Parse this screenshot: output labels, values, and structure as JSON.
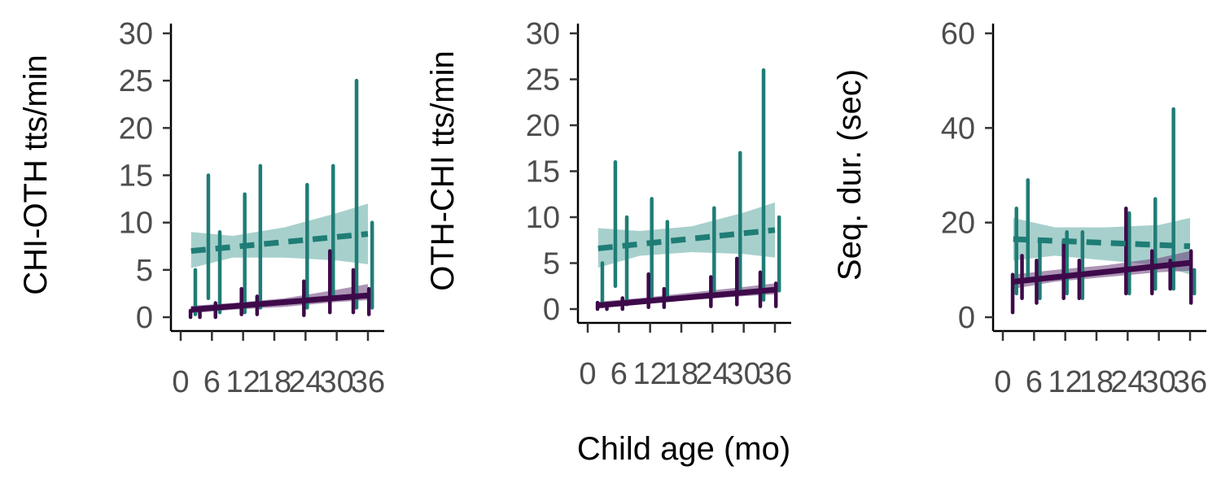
{
  "colors": {
    "band_low": "#3e0a4a",
    "band_high": "#1f7d76",
    "ribbon_low": "#6a3d78",
    "ribbon_high": "#5fa9a2"
  },
  "xlabel_shared": "Child age (mo)",
  "chart_data": [
    {
      "type": "line",
      "ylabel": "CHI-OTH tts/min",
      "xlim": [
        0,
        38
      ],
      "ylim": [
        0,
        30
      ],
      "xticks": [
        0,
        6,
        12,
        18,
        24,
        30,
        36
      ],
      "yticks": [
        0,
        5,
        10,
        15,
        20,
        25,
        30
      ],
      "series": [
        {
          "style": "dashed",
          "color": "#1f7d76",
          "trend": {
            "x": [
              2,
              36
            ],
            "y": [
              7,
              8.8
            ]
          },
          "ribbon": {
            "x": [
              2,
              10,
              20,
              30,
              36
            ],
            "lower": [
              5.2,
              6.3,
              6.3,
              6.0,
              5.6
            ],
            "upper": [
              9.0,
              8.6,
              9.5,
              11.0,
              12.0
            ]
          },
          "ranges": [
            {
              "x": 2.5,
              "lo": 0.3,
              "hi": 5
            },
            {
              "x": 5,
              "lo": 2,
              "hi": 15
            },
            {
              "x": 7.2,
              "lo": 0.5,
              "hi": 9
            },
            {
              "x": 12,
              "lo": 0.5,
              "hi": 13
            },
            {
              "x": 15,
              "lo": 1,
              "hi": 16
            },
            {
              "x": 24,
              "lo": 1,
              "hi": 14
            },
            {
              "x": 29,
              "lo": 2,
              "hi": 16
            },
            {
              "x": 33.5,
              "lo": 1,
              "hi": 25
            },
            {
              "x": 36.5,
              "lo": 1,
              "hi": 10
            }
          ]
        },
        {
          "style": "solid",
          "color": "#3e0a4a",
          "trend": {
            "x": [
              2,
              36
            ],
            "y": [
              0.8,
              2.3
            ]
          },
          "ribbon": {
            "x": [
              2,
              10,
              20,
              30,
              36
            ],
            "lower": [
              0.4,
              0.8,
              1.1,
              1.6,
              1.8
            ],
            "upper": [
              1.2,
              1.5,
              2.0,
              2.9,
              3.5
            ]
          },
          "ranges": [
            {
              "x": 2.2,
              "lo": 0,
              "hi": 0.7
            },
            {
              "x": 4,
              "lo": 0,
              "hi": 0.5
            },
            {
              "x": 7,
              "lo": 0,
              "hi": 1.5
            },
            {
              "x": 12,
              "lo": 0.3,
              "hi": 3
            },
            {
              "x": 15,
              "lo": 0.3,
              "hi": 2.2
            },
            {
              "x": 24,
              "lo": 0.2,
              "hi": 3.8
            },
            {
              "x": 29,
              "lo": 0.5,
              "hi": 7
            },
            {
              "x": 33.5,
              "lo": 0.5,
              "hi": 5
            },
            {
              "x": 36.5,
              "lo": 0.3,
              "hi": 3
            }
          ]
        }
      ]
    },
    {
      "type": "line",
      "ylabel": "OTH-CHI tts/min",
      "xlim": [
        0,
        38
      ],
      "ylim": [
        0,
        30
      ],
      "xticks": [
        0,
        6,
        12,
        18,
        24,
        30,
        36
      ],
      "yticks": [
        0,
        5,
        10,
        15,
        20,
        25,
        30
      ],
      "series": [
        {
          "style": "dashed",
          "color": "#1f7d76",
          "trend": {
            "x": [
              2,
              36
            ],
            "y": [
              6.6,
              8.6
            ]
          },
          "ribbon": {
            "x": [
              2,
              10,
              20,
              30,
              36
            ],
            "lower": [
              4.5,
              5.8,
              6.2,
              6.0,
              5.6
            ],
            "upper": [
              8.8,
              8.5,
              9.0,
              10.5,
              11.6
            ]
          },
          "ranges": [
            {
              "x": 2.5,
              "lo": 0.3,
              "hi": 5
            },
            {
              "x": 5,
              "lo": 2.5,
              "hi": 16
            },
            {
              "x": 7.2,
              "lo": 0.5,
              "hi": 10
            },
            {
              "x": 12,
              "lo": 1,
              "hi": 12
            },
            {
              "x": 15,
              "lo": 1.5,
              "hi": 9.5
            },
            {
              "x": 24,
              "lo": 2,
              "hi": 11
            },
            {
              "x": 29,
              "lo": 2,
              "hi": 17
            },
            {
              "x": 33.5,
              "lo": 1,
              "hi": 26
            },
            {
              "x": 36.5,
              "lo": 2,
              "hi": 10
            }
          ]
        },
        {
          "style": "solid",
          "color": "#3e0a4a",
          "trend": {
            "x": [
              2,
              36
            ],
            "y": [
              0.4,
              2.1
            ]
          },
          "ribbon": {
            "x": [
              2,
              10,
              20,
              30,
              36
            ],
            "lower": [
              0.1,
              0.6,
              1.0,
              1.4,
              1.6
            ],
            "upper": [
              0.8,
              1.2,
              1.8,
              2.4,
              2.8
            ]
          },
          "ranges": [
            {
              "x": 2.2,
              "lo": 0,
              "hi": 0.7
            },
            {
              "x": 4,
              "lo": 0,
              "hi": 0.6
            },
            {
              "x": 7,
              "lo": 0,
              "hi": 1.2
            },
            {
              "x": 12,
              "lo": 0.2,
              "hi": 3.8
            },
            {
              "x": 15,
              "lo": 0.2,
              "hi": 2.2
            },
            {
              "x": 24,
              "lo": 0.3,
              "hi": 3.5
            },
            {
              "x": 29,
              "lo": 0.5,
              "hi": 5.5
            },
            {
              "x": 33.5,
              "lo": 0.3,
              "hi": 4
            },
            {
              "x": 36.5,
              "lo": 0.3,
              "hi": 2.8
            }
          ]
        }
      ]
    },
    {
      "type": "line",
      "ylabel": "Seq. dur. (sec)",
      "xlim": [
        0,
        38
      ],
      "ylim": [
        0,
        62
      ],
      "xticks": [
        0,
        6,
        12,
        18,
        24,
        30,
        36
      ],
      "yticks": [
        0,
        20,
        40,
        60
      ],
      "series": [
        {
          "style": "dashed",
          "color": "#1f7d76",
          "trend": {
            "x": [
              2,
              36
            ],
            "y": [
              16.5,
              15
            ]
          },
          "ribbon": {
            "x": [
              2,
              10,
              20,
              30,
              36
            ],
            "lower": [
              12,
              13,
              12,
              11,
              9
            ],
            "upper": [
              21,
              19,
              19,
              19.5,
              21
            ]
          },
          "ranges": [
            {
              "x": 2.3,
              "lo": 5,
              "hi": 23
            },
            {
              "x": 4.5,
              "lo": 8,
              "hi": 29
            },
            {
              "x": 6.8,
              "lo": 4,
              "hi": 16
            },
            {
              "x": 12,
              "lo": 5,
              "hi": 18
            },
            {
              "x": 15,
              "lo": 4,
              "hi": 18
            },
            {
              "x": 24,
              "lo": 5,
              "hi": 22
            },
            {
              "x": 29,
              "lo": 6,
              "hi": 25
            },
            {
              "x": 32.5,
              "lo": 6,
              "hi": 44
            },
            {
              "x": 36.5,
              "lo": 5,
              "hi": 10
            }
          ]
        },
        {
          "style": "solid",
          "color": "#3e0a4a",
          "trend": {
            "x": [
              2,
              36
            ],
            "y": [
              7.5,
              11.5
            ]
          },
          "ribbon": {
            "x": [
              2,
              10,
              20,
              30,
              36
            ],
            "lower": [
              6,
              7.5,
              8.5,
              9.5,
              9.8
            ],
            "upper": [
              9,
              10,
              11,
              12.5,
              14
            ]
          },
          "ranges": [
            {
              "x": 2.2,
              "lo": 1,
              "hi": 9
            },
            {
              "x": 4,
              "lo": 4,
              "hi": 13
            },
            {
              "x": 6.8,
              "lo": 3,
              "hi": 12
            },
            {
              "x": 12,
              "lo": 4,
              "hi": 16
            },
            {
              "x": 15,
              "lo": 4,
              "hi": 12
            },
            {
              "x": 24,
              "lo": 5,
              "hi": 23
            },
            {
              "x": 29,
              "lo": 5,
              "hi": 14
            },
            {
              "x": 32.5,
              "lo": 6,
              "hi": 12
            },
            {
              "x": 36.5,
              "lo": 3,
              "hi": 14
            }
          ]
        }
      ]
    }
  ]
}
